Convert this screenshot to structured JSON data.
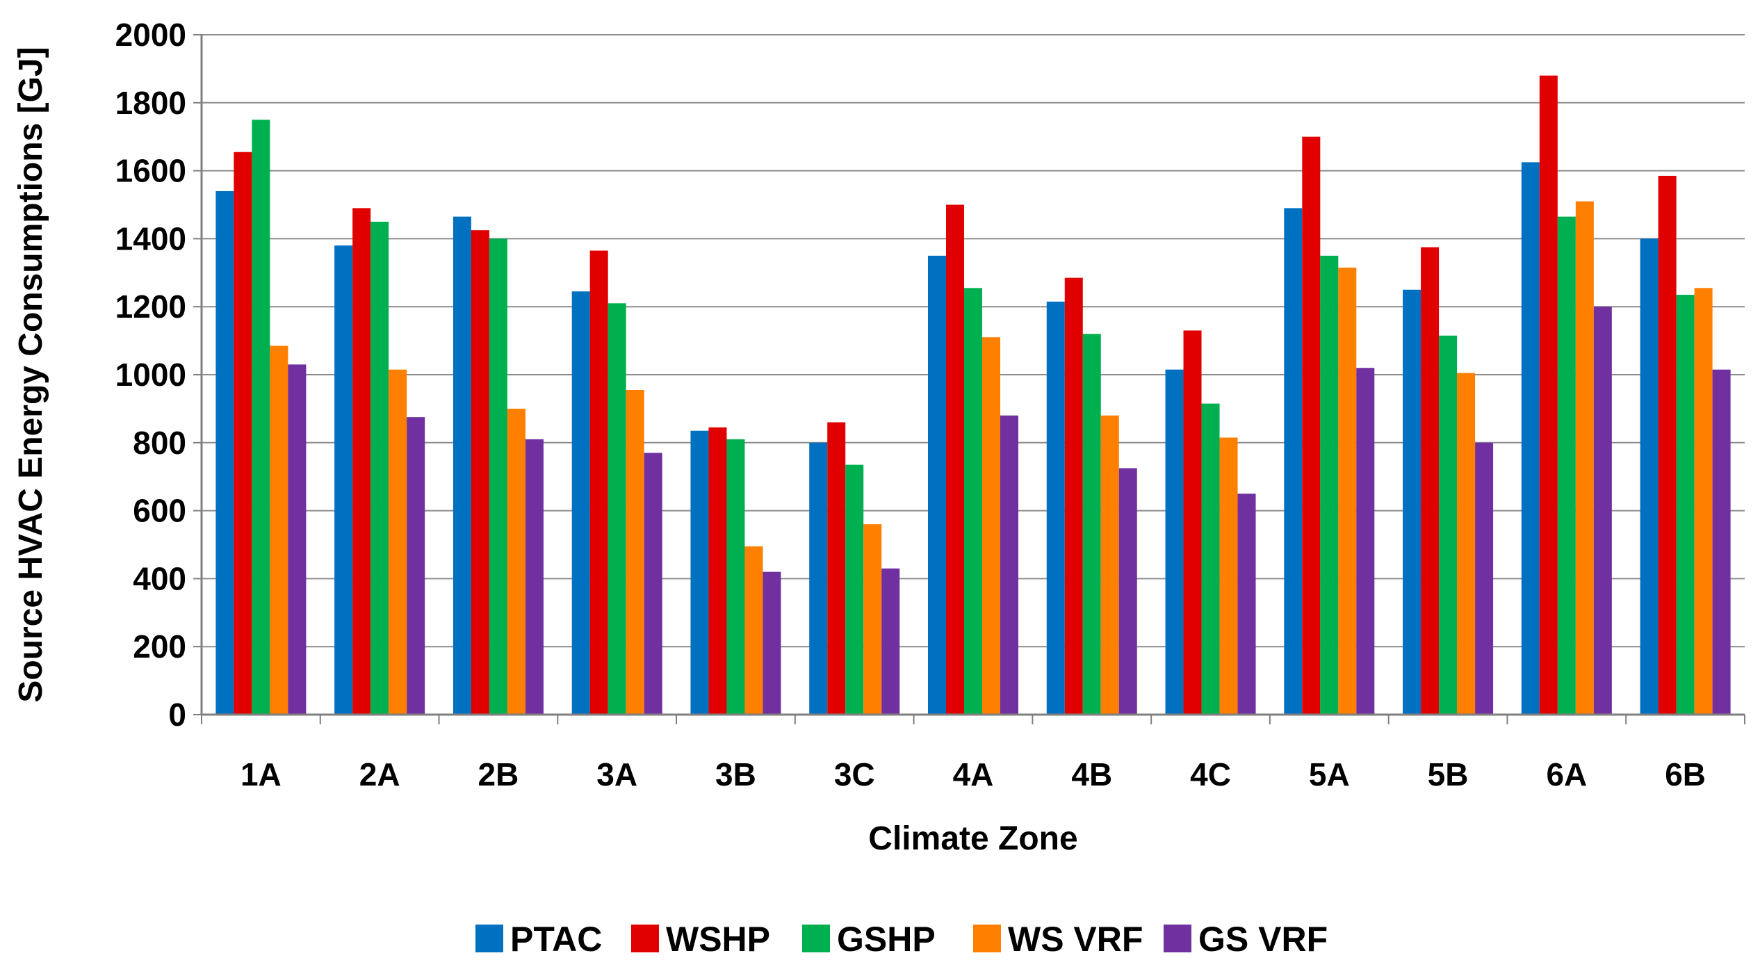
{
  "chart_data": {
    "type": "bar",
    "title": "",
    "xlabel": "Climate Zone",
    "ylabel": "Source HVAC Energy Consumptions  [GJ]",
    "ylim": [
      0,
      2000
    ],
    "yticks": [
      0,
      200,
      400,
      600,
      800,
      1000,
      1200,
      1400,
      1600,
      1800,
      2000
    ],
    "grid": true,
    "legend_position": "bottom",
    "categories": [
      "1A",
      "2A",
      "2B",
      "3A",
      "3B",
      "3C",
      "4A",
      "4B",
      "4C",
      "5A",
      "5B",
      "6A",
      "6B"
    ],
    "series": [
      {
        "name": "PTAC",
        "color": "#0070C0",
        "values": [
          1540,
          1380,
          1465,
          1245,
          835,
          800,
          1350,
          1215,
          1015,
          1490,
          1250,
          1625,
          1400
        ]
      },
      {
        "name": "WSHP",
        "color": "#E00000",
        "values": [
          1655,
          1490,
          1425,
          1365,
          845,
          860,
          1500,
          1285,
          1130,
          1700,
          1375,
          1880,
          1585
        ]
      },
      {
        "name": "GSHP",
        "color": "#00B050",
        "values": [
          1750,
          1450,
          1400,
          1210,
          810,
          735,
          1255,
          1120,
          915,
          1350,
          1115,
          1465,
          1235
        ]
      },
      {
        "name": "WS VRF",
        "color": "#FF7F00",
        "values": [
          1085,
          1015,
          900,
          955,
          495,
          560,
          1110,
          880,
          815,
          1315,
          1005,
          1510,
          1255
        ]
      },
      {
        "name": "GS VRF",
        "color": "#7030A0",
        "values": [
          1030,
          875,
          810,
          770,
          420,
          430,
          880,
          725,
          650,
          1020,
          800,
          1200,
          1015
        ]
      }
    ]
  }
}
